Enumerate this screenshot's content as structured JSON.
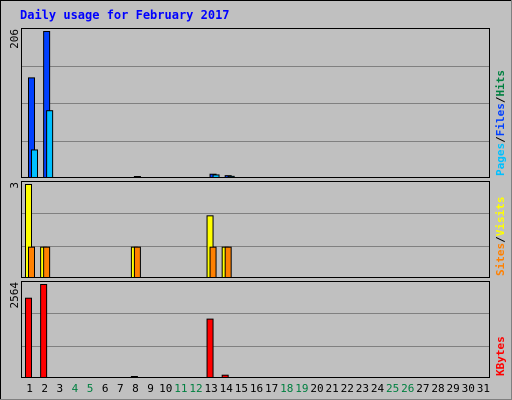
{
  "chart_data": {
    "type": "bar",
    "title": "Daily usage for February 2017",
    "x": [
      "1",
      "2",
      "3",
      "4",
      "5",
      "6",
      "7",
      "8",
      "9",
      "10",
      "11",
      "12",
      "13",
      "14",
      "15",
      "16",
      "17",
      "18",
      "19",
      "20",
      "21",
      "22",
      "23",
      "24",
      "25",
      "26",
      "27",
      "28",
      "29",
      "30",
      "31"
    ],
    "weekend_days": [
      "4",
      "5",
      "11",
      "12",
      "18",
      "19",
      "25",
      "26"
    ],
    "panels": [
      {
        "id": "hits-files-pages",
        "max_label": "206",
        "ymax": 206,
        "side_label": [
          {
            "text": "Pages",
            "color": "#00c0ff"
          },
          {
            "text": "/",
            "color": "#000000"
          },
          {
            "text": "Files",
            "color": "#0040ff"
          },
          {
            "text": "/",
            "color": "#000000"
          },
          {
            "text": "Hits",
            "color": "#008040"
          }
        ],
        "series": [
          {
            "name": "Hits",
            "color": "#008040",
            "values": [
              0,
              0,
              0,
              0,
              0,
              0,
              0,
              0,
              0,
              0,
              0,
              0,
              0,
              0,
              0,
              0,
              0,
              0,
              0,
              0,
              0,
              0,
              0,
              0,
              0,
              0,
              0,
              0,
              0,
              0,
              0
            ]
          },
          {
            "name": "Files",
            "color": "#0040ff",
            "values": [
              141,
              206,
              0,
              0,
              0,
              0,
              0,
              1,
              0,
              0,
              0,
              0,
              6,
              4,
              0,
              0,
              0,
              0,
              0,
              0,
              0,
              0,
              0,
              0,
              0,
              0,
              0,
              0,
              0,
              0,
              0
            ]
          },
          {
            "name": "Pages",
            "color": "#00c0ff",
            "values": [
              40,
              95,
              0,
              0,
              0,
              0,
              0,
              0,
              0,
              0,
              0,
              0,
              5,
              3,
              0,
              0,
              0,
              0,
              0,
              0,
              0,
              0,
              0,
              0,
              0,
              0,
              0,
              0,
              0,
              0,
              0
            ]
          }
        ]
      },
      {
        "id": "visits-sites",
        "max_label": "3",
        "ymax": 3,
        "side_label": [
          {
            "text": "Sites",
            "color": "#ff8000"
          },
          {
            "text": "/",
            "color": "#000000"
          },
          {
            "text": "Visits",
            "color": "#ffff00"
          }
        ],
        "series": [
          {
            "name": "Visits",
            "color": "#ffff00",
            "values": [
              3,
              1,
              0,
              0,
              0,
              0,
              0,
              1,
              0,
              0,
              0,
              0,
              2,
              1,
              0,
              0,
              0,
              0,
              0,
              0,
              0,
              0,
              0,
              0,
              0,
              0,
              0,
              0,
              0,
              0,
              0
            ]
          },
          {
            "name": "Sites",
            "color": "#ff8000",
            "values": [
              1,
              1,
              0,
              0,
              0,
              0,
              0,
              1,
              0,
              0,
              0,
              0,
              1,
              1,
              0,
              0,
              0,
              0,
              0,
              0,
              0,
              0,
              0,
              0,
              0,
              0,
              0,
              0,
              0,
              0,
              0
            ]
          }
        ]
      },
      {
        "id": "kbytes",
        "max_label": "2564",
        "ymax": 2564,
        "side_label": [
          {
            "text": "KBytes",
            "color": "#ff0000"
          }
        ],
        "series": [
          {
            "name": "KBytes",
            "color": "#ff0000",
            "values": [
              2190,
              2564,
              0,
              0,
              0,
              0,
              0,
              20,
              0,
              0,
              0,
              0,
              1620,
              90,
              0,
              0,
              0,
              0,
              0,
              0,
              0,
              0,
              0,
              0,
              0,
              0,
              0,
              0,
              0,
              0,
              0
            ]
          }
        ]
      }
    ],
    "colors": {
      "background": "#c0c0c0",
      "title": "#0000ff",
      "weekday_label": "#000000",
      "weekend_label": "#008040",
      "grid": "#808080"
    }
  }
}
